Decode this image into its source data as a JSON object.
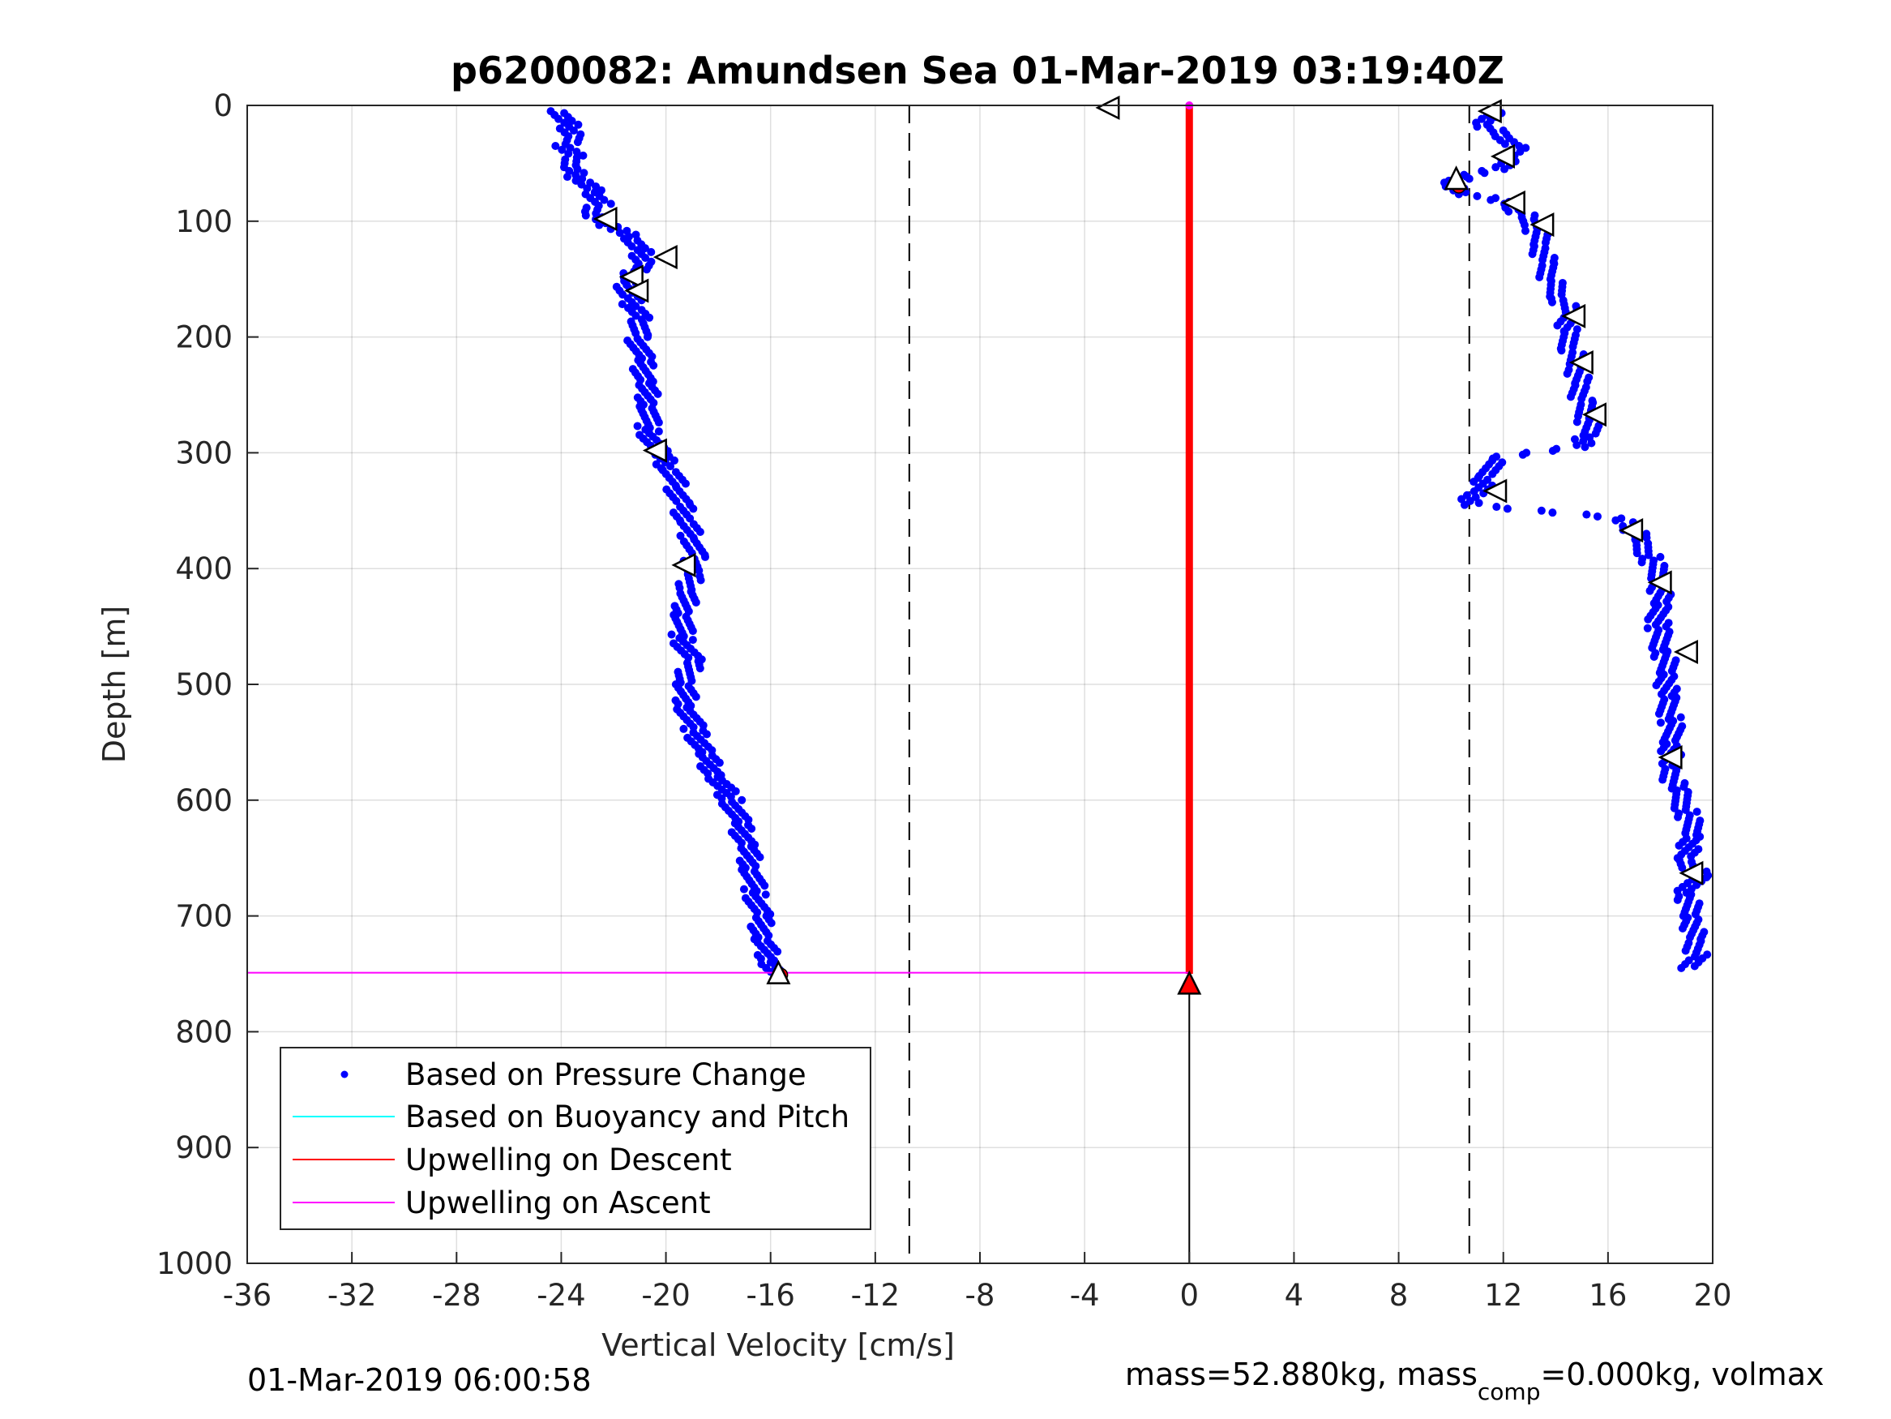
{
  "chart_data": {
    "type": "scatter",
    "title": "p6200082: Amundsen Sea 01-Mar-2019 03:19:40Z",
    "xlabel": "Vertical Velocity [cm/s]",
    "ylabel": "Depth [m]",
    "xlim": [
      -36,
      20
    ],
    "ylim": [
      0,
      1000
    ],
    "y_reversed": true,
    "grid": true,
    "xticks": [
      -36,
      -32,
      -28,
      -24,
      -20,
      -16,
      -12,
      -8,
      -4,
      0,
      4,
      8,
      12,
      16,
      20
    ],
    "yticks": [
      0,
      100,
      200,
      300,
      400,
      500,
      600,
      700,
      800,
      900,
      1000
    ],
    "legend_position": "bottom-left",
    "colors": {
      "pressure_change": "#0000ff",
      "buoyancy_pitch": "#00ffff",
      "upwelling_descent": "#ff0000",
      "upwelling_ascent": "#ff00ff",
      "reference_lines": "#000000"
    },
    "legend": [
      {
        "label": "Based on Pressure Change",
        "style": "dot",
        "color": "#0000ff"
      },
      {
        "label": "Based on Buoyancy and Pitch",
        "style": "line",
        "color": "#00ffff"
      },
      {
        "label": "Upwelling on Descent",
        "style": "line",
        "color": "#ff0000"
      },
      {
        "label": "Upwelling on Ascent",
        "style": "line",
        "color": "#ff00ff"
      }
    ],
    "reference_lines_x": [
      -10.7,
      10.7
    ],
    "upwelling_ascent_lines": [
      {
        "x": [
          -36,
          0
        ],
        "y": [
          0,
          0
        ]
      },
      {
        "x": [
          -36,
          0
        ],
        "y": [
          749,
          749
        ]
      }
    ],
    "upwelling_descent_x": 0,
    "upwelling_descent_depth_range": [
      0,
      750
    ],
    "zero_line_depth_range": [
      760,
      1000
    ],
    "descent_series": {
      "name": "Based on Pressure Change (descent)",
      "depth": [
        5,
        15,
        25,
        35,
        45,
        55,
        65,
        75,
        85,
        95,
        105,
        115,
        125,
        135,
        145,
        155,
        165,
        175,
        185,
        200,
        220,
        240,
        260,
        280,
        300,
        315,
        330,
        345,
        360,
        375,
        390,
        405,
        420,
        440,
        460,
        480,
        500,
        520,
        540,
        560,
        580,
        600,
        620,
        640,
        660,
        680,
        700,
        720,
        740,
        750
      ],
      "velocity": [
        -24.0,
        -23.8,
        -23.5,
        -23.9,
        -23.4,
        -23.7,
        -23.2,
        -22.8,
        -22.5,
        -22.9,
        -22.0,
        -21.2,
        -21.0,
        -20.8,
        -21.3,
        -21.5,
        -21.4,
        -21.2,
        -21.0,
        -21.1,
        -20.9,
        -20.8,
        -20.6,
        -20.7,
        -20.3,
        -19.8,
        -19.6,
        -19.4,
        -19.2,
        -19.0,
        -18.9,
        -19.0,
        -19.2,
        -19.3,
        -19.4,
        -19.0,
        -19.3,
        -19.2,
        -18.9,
        -18.5,
        -18.1,
        -17.5,
        -17.2,
        -16.9,
        -16.7,
        -16.6,
        -16.4,
        -16.3,
        -16.0,
        -15.7
      ]
    },
    "ascent_series": {
      "name": "Based on Pressure Change (ascent)",
      "depth": [
        745,
        735,
        720,
        700,
        680,
        665,
        650,
        630,
        610,
        590,
        570,
        550,
        530,
        510,
        490,
        470,
        450,
        430,
        410,
        390,
        375,
        360,
        355,
        345,
        335,
        320,
        305,
        295,
        285,
        270,
        255,
        240,
        225,
        210,
        195,
        180,
        165,
        150,
        135,
        120,
        105,
        95,
        85,
        75,
        70,
        65,
        55,
        45,
        35,
        25,
        15,
        5
      ],
      "velocity": [
        19.2,
        19.4,
        19.3,
        19.2,
        19.0,
        19.5,
        18.9,
        19.3,
        19.0,
        18.6,
        18.3,
        18.5,
        18.4,
        18.2,
        18.3,
        18.1,
        17.9,
        18.0,
        18.0,
        17.6,
        17.2,
        16.8,
        16.0,
        10.6,
        11.0,
        11.4,
        11.6,
        14.8,
        15.3,
        15.2,
        15.0,
        14.9,
        14.8,
        14.6,
        14.4,
        14.6,
        14.1,
        13.8,
        13.6,
        13.4,
        13.2,
        12.8,
        12.2,
        10.4,
        10.2,
        10.0,
        11.8,
        12.2,
        12.6,
        11.8,
        11.2,
        11.6
      ]
    },
    "markers_right": [
      {
        "x": -3.1,
        "y": 2
      },
      {
        "x": -22.3,
        "y": 98
      },
      {
        "x": -20.0,
        "y": 131
      },
      {
        "x": -21.3,
        "y": 148
      },
      {
        "x": -21.1,
        "y": 160
      },
      {
        "x": -20.4,
        "y": 298
      },
      {
        "x": -19.3,
        "y": 397
      }
    ],
    "markers_left": [
      {
        "x": 11.5,
        "y": 5
      },
      {
        "x": 12.0,
        "y": 44
      },
      {
        "x": 12.4,
        "y": 84
      },
      {
        "x": 13.5,
        "y": 103
      },
      {
        "x": 14.7,
        "y": 182
      },
      {
        "x": 15.0,
        "y": 222
      },
      {
        "x": 15.5,
        "y": 267
      },
      {
        "x": 11.7,
        "y": 333
      },
      {
        "x": 16.9,
        "y": 367
      },
      {
        "x": 18.0,
        "y": 412
      },
      {
        "x": 19.0,
        "y": 472
      },
      {
        "x": 18.4,
        "y": 563
      },
      {
        "x": 19.2,
        "y": 663
      }
    ],
    "markers_up": [
      {
        "x": 10.2,
        "y": 63,
        "fill": "#ffffff"
      },
      {
        "x": -15.7,
        "y": 749,
        "fill": "#ffffff"
      },
      {
        "x": 0,
        "y": 758,
        "fill": "#ff0000"
      }
    ],
    "red_points": [
      {
        "x": 10.3,
        "y": 70
      },
      {
        "x": -15.6,
        "y": 751
      }
    ]
  },
  "footer": {
    "left_timestamp": "01-Mar-2019 06:00:58",
    "mass_text_1": "mass=52.880kg, mass",
    "mass_sub": "comp",
    "mass_text_2": "=0.000kg, volmax"
  }
}
